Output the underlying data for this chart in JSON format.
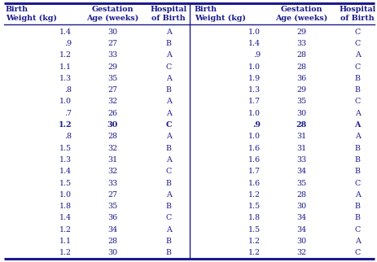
{
  "left_data": [
    [
      "1.4",
      "30",
      "A"
    ],
    [
      ".9",
      "27",
      "B"
    ],
    [
      "1.2",
      "33",
      "A"
    ],
    [
      "1.1",
      "29",
      "C"
    ],
    [
      "1.3",
      "35",
      "A"
    ],
    [
      ".8",
      "27",
      "B"
    ],
    [
      "1.0",
      "32",
      "A"
    ],
    [
      ".7",
      "26",
      "A"
    ],
    [
      "1.2",
      "30",
      "C"
    ],
    [
      ".8",
      "28",
      "A"
    ],
    [
      "1.5",
      "32",
      "B"
    ],
    [
      "1.3",
      "31",
      "A"
    ],
    [
      "1.4",
      "32",
      "C"
    ],
    [
      "1.5",
      "33",
      "B"
    ],
    [
      "1.0",
      "27",
      "A"
    ],
    [
      "1.8",
      "35",
      "B"
    ],
    [
      "1.4",
      "36",
      "C"
    ],
    [
      "1.2",
      "34",
      "A"
    ],
    [
      "1.1",
      "28",
      "B"
    ],
    [
      "1.2",
      "30",
      "B"
    ]
  ],
  "right_data": [
    [
      "1.0",
      "29",
      "C"
    ],
    [
      "1.4",
      "33",
      "C"
    ],
    [
      ".9",
      "28",
      "A"
    ],
    [
      "1.0",
      "28",
      "C"
    ],
    [
      "1.9",
      "36",
      "B"
    ],
    [
      "1.3",
      "29",
      "B"
    ],
    [
      "1.7",
      "35",
      "C"
    ],
    [
      "1.0",
      "30",
      "A"
    ],
    [
      ".9",
      "28",
      "A"
    ],
    [
      "1.0",
      "31",
      "A"
    ],
    [
      "1.6",
      "31",
      "B"
    ],
    [
      "1.6",
      "33",
      "B"
    ],
    [
      "1.7",
      "34",
      "B"
    ],
    [
      "1.6",
      "35",
      "C"
    ],
    [
      "1.2",
      "28",
      "A"
    ],
    [
      "1.5",
      "30",
      "B"
    ],
    [
      "1.8",
      "34",
      "B"
    ],
    [
      "1.5",
      "34",
      "C"
    ],
    [
      "1.2",
      "30",
      "A"
    ],
    [
      "1.2",
      "32",
      "C"
    ]
  ],
  "bold_rows_left": [
    8
  ],
  "bold_rows_right": [
    8
  ],
  "bg_color": "#ffffff",
  "text_color": "#1a1a8c",
  "line_color": "#1a1a8c",
  "font_size": 6.8,
  "header_font_size": 6.8
}
